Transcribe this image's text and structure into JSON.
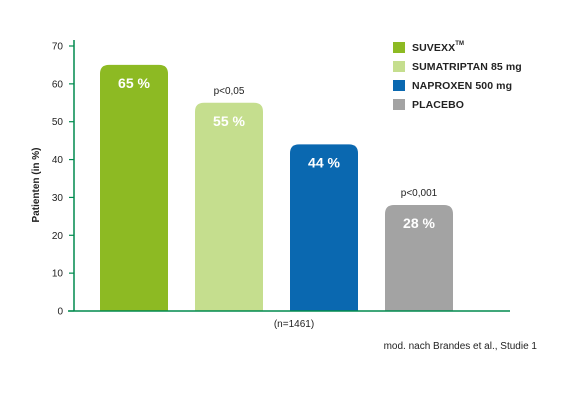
{
  "chart_data": {
    "type": "bar",
    "categories": [
      "SUVEXX™",
      "SUMATRIPTAN 85 mg",
      "NAPROXEN 500 mg",
      "PLACEBO"
    ],
    "values": [
      65,
      55,
      44,
      28
    ],
    "value_labels": [
      "65 %",
      "55 %",
      "44 %",
      "28 %"
    ],
    "colors": [
      "#8dba23",
      "#c5de8e",
      "#0a68b0",
      "#a3a3a3"
    ],
    "value_label_colors": [
      "#ffffff",
      "#ffffff",
      "#ffffff",
      "#ffffff"
    ],
    "significance": [
      "",
      "p<0,05",
      "",
      "p<0,001"
    ],
    "ylabel": "Patienten (in %)",
    "yticks": [
      0,
      10,
      20,
      30,
      40,
      50,
      60,
      70
    ],
    "ylim": [
      0,
      70
    ],
    "xlabel": "(n=1461)",
    "axis_color": "#008a4e",
    "grid": false,
    "legend_placement": "top-right"
  },
  "legend": [
    {
      "label": "SUVEXX",
      "sup": "TM",
      "color": "#8dba23"
    },
    {
      "label": "SUMATRIPTAN 85 mg",
      "sup": "",
      "color": "#c5de8e"
    },
    {
      "label": "NAPROXEN 500 mg",
      "sup": "",
      "color": "#0a68b0"
    },
    {
      "label": "PLACEBO",
      "sup": "",
      "color": "#a3a3a3"
    }
  ],
  "source": "mod. nach Brandes et al., Studie 1"
}
